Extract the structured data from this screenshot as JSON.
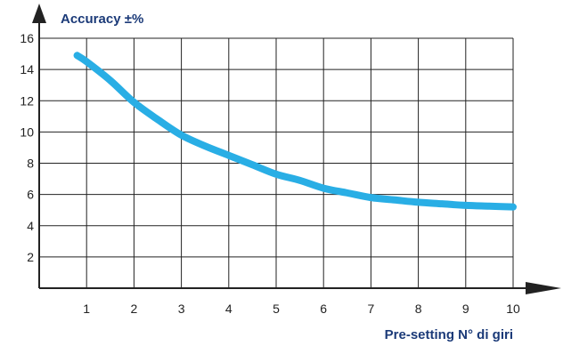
{
  "chart_data": {
    "type": "line",
    "title": "",
    "ylabel": "Accuracy ±%",
    "xlabel": "Pre-setting N° di giri",
    "xlim": [
      0,
      10
    ],
    "ylim": [
      0,
      16
    ],
    "xticks": [
      1,
      2,
      3,
      4,
      5,
      6,
      7,
      8,
      9,
      10
    ],
    "yticks": [
      2,
      4,
      6,
      8,
      10,
      12,
      14,
      16
    ],
    "grid": true,
    "legend": "none",
    "series": [
      {
        "x": [
          0.8,
          1.0,
          1.5,
          2.0,
          2.5,
          3.0,
          3.5,
          4.0,
          4.5,
          5.0,
          5.5,
          6.0,
          6.5,
          7.0,
          7.5,
          8.0,
          8.5,
          9.0,
          9.5,
          10.0
        ],
        "y": [
          14.9,
          14.5,
          13.3,
          11.9,
          10.8,
          9.8,
          9.1,
          8.5,
          7.9,
          7.3,
          6.9,
          6.4,
          6.1,
          5.8,
          5.65,
          5.5,
          5.4,
          5.3,
          5.25,
          5.2
        ],
        "color": "#29aee5"
      }
    ],
    "axis_color": "#222222",
    "grid_color": "#222222",
    "label_color": "#1b3a78"
  }
}
